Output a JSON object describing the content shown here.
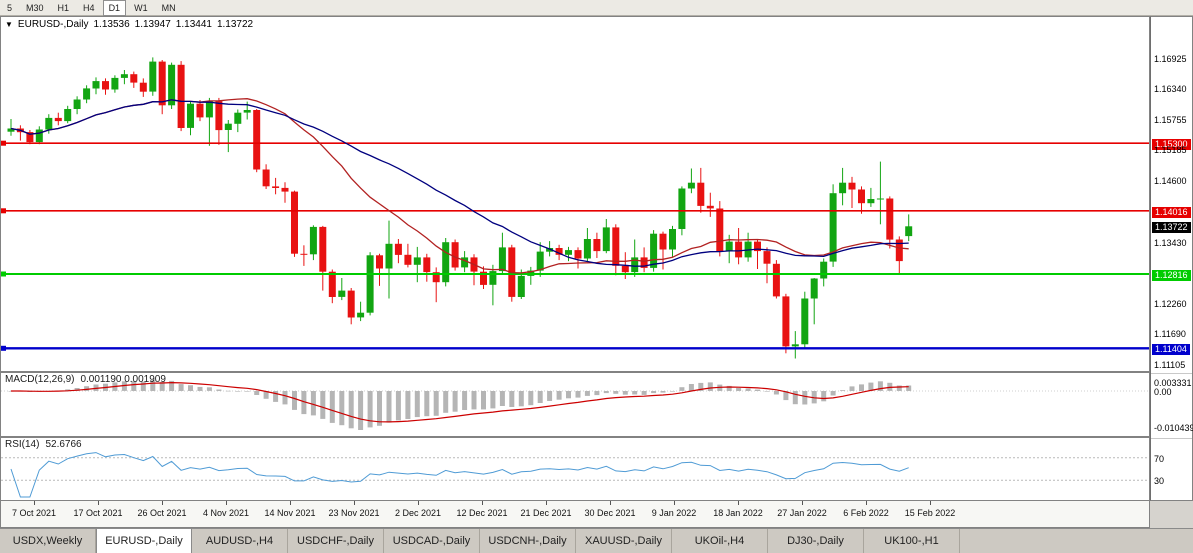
{
  "toolbar": {
    "timeframes": [
      {
        "label": "5",
        "active": false
      },
      {
        "label": "M30",
        "active": false
      },
      {
        "label": "H1",
        "active": false
      },
      {
        "label": "H4",
        "active": false
      },
      {
        "label": "D1",
        "active": true
      },
      {
        "label": "W1",
        "active": false
      },
      {
        "label": "MN",
        "active": false
      }
    ]
  },
  "chart_header": {
    "marker": "▼",
    "symbol": "EURUSD-,Daily",
    "open": "1.13536",
    "high": "1.13947",
    "low": "1.13441",
    "close": "1.13722"
  },
  "indicators": {
    "macd": {
      "label": "MACD(12,26,9)",
      "values": "0.001190 0.001909"
    },
    "rsi": {
      "label": "RSI(14)",
      "value": "52.6766"
    }
  },
  "chart_data": {
    "type": "candlestick",
    "title": "EURUSD-,Daily",
    "main": {
      "price_range": [
        1.1103,
        1.1764
      ],
      "up_color": "#12a512",
      "down_color": "#e81212",
      "ma_overlays": [
        {
          "type": "sma",
          "period": 21,
          "color": "#b22222"
        },
        {
          "type": "sma",
          "period": 34,
          "color": "#00007f"
        }
      ],
      "hlines": [
        {
          "price": 1.153,
          "label": "1.15300",
          "color": "#e60000",
          "width": 1.6
        },
        {
          "price": 1.14016,
          "label": "1.14016",
          "color": "#e60000",
          "width": 1.6
        },
        {
          "price": 1.12816,
          "label": "1.12816",
          "color": "#00cc00",
          "width": 2
        },
        {
          "price": 1.11404,
          "label": "1.11404",
          "color": "#0000cc",
          "width": 2.4
        }
      ],
      "current_price": {
        "price": 1.13722,
        "label": "1.13722",
        "bg": "#000000"
      },
      "axis_ticks": [
        {
          "price": 1.16925,
          "label": "1.16925"
        },
        {
          "price": 1.1634,
          "label": "1.16340"
        },
        {
          "price": 1.15755,
          "label": "1.15755"
        },
        {
          "price": 1.15185,
          "label": "1.15185"
        },
        {
          "price": 1.146,
          "label": "1.14600"
        },
        {
          "price": 1.1343,
          "label": "1.13430"
        },
        {
          "price": 1.1226,
          "label": "1.12260"
        },
        {
          "price": 1.1169,
          "label": "1.11690"
        },
        {
          "price": 1.11105,
          "label": "1.11105"
        }
      ],
      "x_labels": [
        "7 Oct 2021",
        "17 Oct 2021",
        "26 Oct 2021",
        "4 Nov 2021",
        "14 Nov 2021",
        "23 Nov 2021",
        "2 Dec 2021",
        "12 Dec 2021",
        "21 Dec 2021",
        "30 Dec 2021",
        "9 Jan 2022",
        "18 Jan 2022",
        "27 Jan 2022",
        "6 Feb 2022",
        "15 Feb 2022"
      ],
      "candles": [
        [
          1.1552,
          1.1576,
          1.1544,
          1.1558
        ],
        [
          1.1558,
          1.1564,
          1.1535,
          1.1551
        ],
        [
          1.1551,
          1.1555,
          1.1528,
          1.1532
        ],
        [
          1.1532,
          1.1562,
          1.1528,
          1.1556
        ],
        [
          1.1556,
          1.1585,
          1.1548,
          1.1578
        ],
        [
          1.1578,
          1.1588,
          1.1564,
          1.1572
        ],
        [
          1.1572,
          1.1601,
          1.1568,
          1.1595
        ],
        [
          1.1595,
          1.1619,
          1.1585,
          1.1613
        ],
        [
          1.1613,
          1.164,
          1.1606,
          1.1634
        ],
        [
          1.1634,
          1.1655,
          1.1623,
          1.1648
        ],
        [
          1.1648,
          1.1653,
          1.1622,
          1.1632
        ],
        [
          1.1632,
          1.1659,
          1.1626,
          1.1654
        ],
        [
          1.1654,
          1.1669,
          1.1642,
          1.1661
        ],
        [
          1.1661,
          1.1666,
          1.1635,
          1.1645
        ],
        [
          1.1645,
          1.1653,
          1.1618,
          1.1628
        ],
        [
          1.1628,
          1.1693,
          1.162,
          1.1685
        ],
        [
          1.1685,
          1.1688,
          1.1585,
          1.1602
        ],
        [
          1.1602,
          1.1683,
          1.1595,
          1.1679
        ],
        [
          1.1679,
          1.1686,
          1.1553,
          1.1559
        ],
        [
          1.1559,
          1.161,
          1.1545,
          1.1605
        ],
        [
          1.1605,
          1.1612,
          1.1572,
          1.1579
        ],
        [
          1.1579,
          1.1616,
          1.1525,
          1.161
        ],
        [
          1.161,
          1.1616,
          1.1527,
          1.1555
        ],
        [
          1.1555,
          1.1574,
          1.1513,
          1.1567
        ],
        [
          1.1567,
          1.1594,
          1.1551,
          1.1588
        ],
        [
          1.1588,
          1.1609,
          1.1575,
          1.1593
        ],
        [
          1.1593,
          1.1595,
          1.1475,
          1.148
        ],
        [
          1.148,
          1.149,
          1.1443,
          1.1448
        ],
        [
          1.1448,
          1.1464,
          1.1433,
          1.1445
        ],
        [
          1.1445,
          1.1456,
          1.1417,
          1.1438
        ],
        [
          1.1438,
          1.144,
          1.1314,
          1.132
        ],
        [
          1.132,
          1.1336,
          1.1297,
          1.1319
        ],
        [
          1.1319,
          1.1374,
          1.1308,
          1.1371
        ],
        [
          1.1371,
          1.1373,
          1.125,
          1.1286
        ],
        [
          1.1286,
          1.129,
          1.1226,
          1.1238
        ],
        [
          1.1238,
          1.1274,
          1.1232,
          1.125
        ],
        [
          1.125,
          1.1255,
          1.1186,
          1.1199
        ],
        [
          1.1199,
          1.1229,
          1.1192,
          1.1208
        ],
        [
          1.1208,
          1.1323,
          1.1203,
          1.1317
        ],
        [
          1.1317,
          1.132,
          1.1259,
          1.1292
        ],
        [
          1.1292,
          1.1383,
          1.1235,
          1.1339
        ],
        [
          1.1339,
          1.1348,
          1.1302,
          1.1318
        ],
        [
          1.1318,
          1.1339,
          1.1294,
          1.1299
        ],
        [
          1.1299,
          1.1333,
          1.1266,
          1.1313
        ],
        [
          1.1313,
          1.132,
          1.1267,
          1.1285
        ],
        [
          1.1285,
          1.1294,
          1.1228,
          1.1266
        ],
        [
          1.1266,
          1.135,
          1.1258,
          1.1342
        ],
        [
          1.1342,
          1.1347,
          1.1288,
          1.1294
        ],
        [
          1.1294,
          1.1325,
          1.1285,
          1.1313
        ],
        [
          1.1313,
          1.1319,
          1.126,
          1.1286
        ],
        [
          1.1286,
          1.1296,
          1.1253,
          1.1261
        ],
        [
          1.1261,
          1.1299,
          1.1222,
          1.1287
        ],
        [
          1.1287,
          1.136,
          1.1281,
          1.1332
        ],
        [
          1.1332,
          1.1337,
          1.1229,
          1.1238
        ],
        [
          1.1238,
          1.129,
          1.1234,
          1.1278
        ],
        [
          1.1278,
          1.1295,
          1.1261,
          1.1288
        ],
        [
          1.1288,
          1.1342,
          1.1276,
          1.1324
        ],
        [
          1.1324,
          1.1344,
          1.1315,
          1.1331
        ],
        [
          1.1331,
          1.1337,
          1.1308,
          1.1318
        ],
        [
          1.1318,
          1.1333,
          1.1306,
          1.1327
        ],
        [
          1.1327,
          1.1332,
          1.1292,
          1.1311
        ],
        [
          1.1311,
          1.1369,
          1.1305,
          1.1348
        ],
        [
          1.1348,
          1.136,
          1.1312,
          1.1325
        ],
        [
          1.1325,
          1.1386,
          1.1321,
          1.137
        ],
        [
          1.137,
          1.1376,
          1.1279,
          1.1297
        ],
        [
          1.1297,
          1.1323,
          1.1272,
          1.1285
        ],
        [
          1.1285,
          1.1347,
          1.1276,
          1.1313
        ],
        [
          1.1313,
          1.1332,
          1.1285,
          1.1293
        ],
        [
          1.1293,
          1.1365,
          1.1286,
          1.1358
        ],
        [
          1.1358,
          1.1362,
          1.129,
          1.1328
        ],
        [
          1.1328,
          1.1373,
          1.1314,
          1.1367
        ],
        [
          1.1367,
          1.1448,
          1.1355,
          1.1444
        ],
        [
          1.1444,
          1.1482,
          1.1435,
          1.1455
        ],
        [
          1.1455,
          1.1483,
          1.1398,
          1.1411
        ],
        [
          1.1411,
          1.1436,
          1.139,
          1.1406
        ],
        [
          1.1406,
          1.142,
          1.1315,
          1.1325
        ],
        [
          1.1325,
          1.1356,
          1.1302,
          1.1343
        ],
        [
          1.1343,
          1.1369,
          1.13,
          1.1313
        ],
        [
          1.1313,
          1.136,
          1.1305,
          1.1343
        ],
        [
          1.1343,
          1.1348,
          1.1291,
          1.1325
        ],
        [
          1.1325,
          1.1332,
          1.1264,
          1.1301
        ],
        [
          1.1301,
          1.1308,
          1.1235,
          1.1239
        ],
        [
          1.1239,
          1.1244,
          1.1131,
          1.1144
        ],
        [
          1.1144,
          1.1173,
          1.1121,
          1.1148
        ],
        [
          1.1148,
          1.1248,
          1.1141,
          1.1235
        ],
        [
          1.1235,
          1.1274,
          1.1186,
          1.1273
        ],
        [
          1.1273,
          1.1311,
          1.1258,
          1.1305
        ],
        [
          1.1305,
          1.1452,
          1.1295,
          1.1435
        ],
        [
          1.1435,
          1.1483,
          1.1412,
          1.1455
        ],
        [
          1.1455,
          1.1466,
          1.1407,
          1.1442
        ],
        [
          1.1442,
          1.1448,
          1.1396,
          1.1416
        ],
        [
          1.1416,
          1.1445,
          1.1409,
          1.1424
        ],
        [
          1.1424,
          1.1495,
          1.1376,
          1.1425
        ],
        [
          1.1425,
          1.1429,
          1.133,
          1.1347
        ],
        [
          1.1347,
          1.1353,
          1.128,
          1.1306
        ],
        [
          1.13536,
          1.13947,
          1.13441,
          1.13722
        ]
      ]
    },
    "macd_panel": {
      "params": "12,26,9",
      "hist_color": "#b5b5b5",
      "signal_color": "#cc0000",
      "axis_labels": {
        "top": "0.003331",
        "zero": "0.00",
        "bottom": "-0.010439"
      }
    },
    "rsi_panel": {
      "period": 14,
      "line_color": "#4f9bd5",
      "levels": [
        70,
        30
      ],
      "axis_labels": [
        "70",
        "30"
      ]
    }
  },
  "tabbar": {
    "tabs": [
      {
        "label": "USDX,Weekly",
        "active": false
      },
      {
        "label": "EURUSD-,Daily",
        "active": true
      },
      {
        "label": "AUDUSD-,H4",
        "active": false
      },
      {
        "label": "USDCHF-,Daily",
        "active": false
      },
      {
        "label": "USDCAD-,Daily",
        "active": false
      },
      {
        "label": "USDCNH-,Daily",
        "active": false
      },
      {
        "label": "XAUUSD-,Daily",
        "active": false
      },
      {
        "label": "UKOil-,H4",
        "active": false
      },
      {
        "label": "DJ30-,Daily",
        "active": false
      },
      {
        "label": "UK100-,H1",
        "active": false
      }
    ]
  }
}
